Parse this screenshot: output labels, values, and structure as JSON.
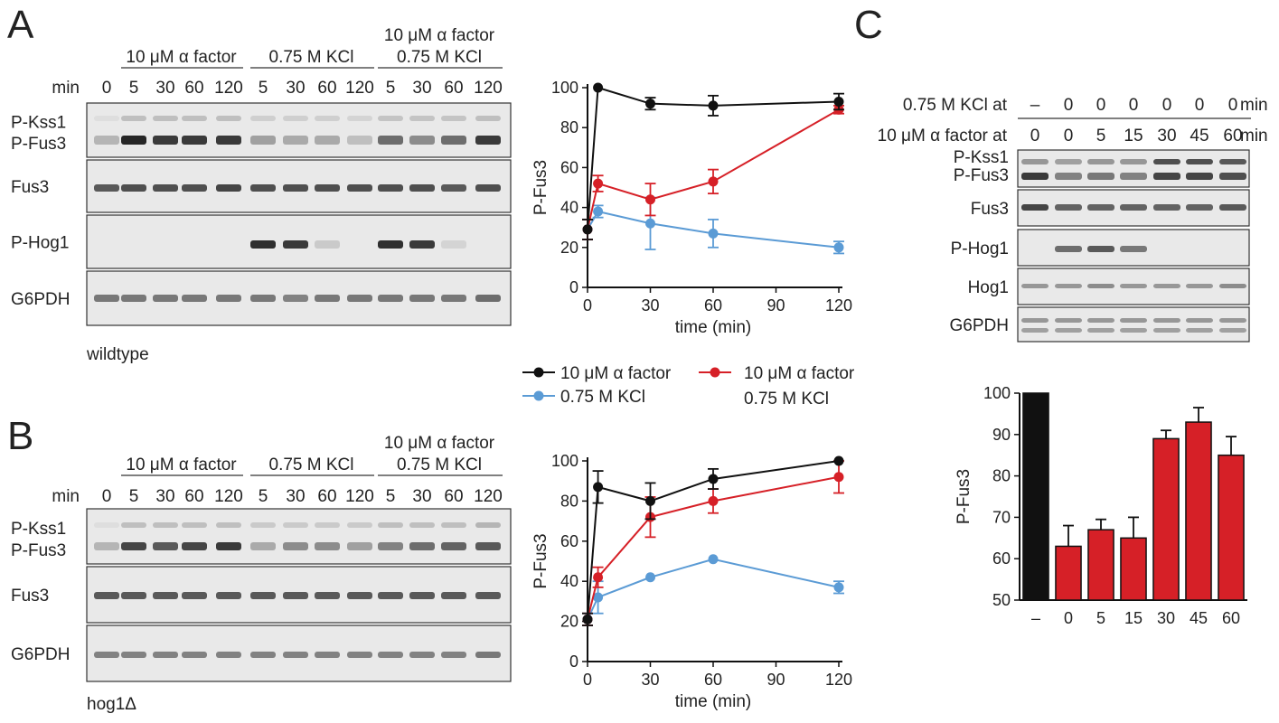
{
  "panels": {
    "A": {
      "letter": "A",
      "strain": "wildtype",
      "conditions": [
        "10 μM α factor",
        "0.75 M KCl",
        "10 μM α factor\n0.75 M KCl"
      ],
      "cond_lines": [
        [
          "10 μM α factor"
        ],
        [
          "0.75 M KCl"
        ],
        [
          "10 μM α factor",
          "0.75 M KCl"
        ]
      ],
      "time_header": "min",
      "lanes": [
        "0",
        "5",
        "30",
        "60",
        "120",
        "5",
        "30",
        "60",
        "120",
        "5",
        "30",
        "60",
        "120"
      ],
      "blots": [
        {
          "labels": [
            "P-Kss1",
            "P-Fus3"
          ]
        },
        {
          "labels": [
            "Fus3"
          ]
        },
        {
          "labels": [
            "P-Hog1"
          ]
        },
        {
          "labels": [
            "G6PDH"
          ]
        }
      ]
    },
    "B": {
      "letter": "B",
      "strain": "hog1Δ",
      "cond_lines": [
        [
          "10 μM α factor"
        ],
        [
          "0.75 M KCl"
        ],
        [
          "10 μM α factor",
          "0.75 M KCl"
        ]
      ],
      "time_header": "min",
      "lanes": [
        "0",
        "5",
        "30",
        "60",
        "120",
        "5",
        "30",
        "60",
        "120",
        "5",
        "30",
        "60",
        "120"
      ],
      "blots": [
        {
          "labels": [
            "P-Kss1",
            "P-Fus3"
          ]
        },
        {
          "labels": [
            "Fus3"
          ]
        },
        {
          "labels": [
            "G6PDH"
          ]
        }
      ]
    },
    "C": {
      "letter": "C",
      "row1_label": "0.75 M KCl at",
      "row1_values": [
        "–",
        "0",
        "0",
        "0",
        "0",
        "0",
        "0"
      ],
      "row2_label": "10 μM α factor at",
      "row2_values": [
        "0",
        "0",
        "5",
        "15",
        "30",
        "45",
        "60"
      ],
      "unit": "min",
      "blots": [
        {
          "labels": [
            "P-Kss1",
            "P-Fus3"
          ]
        },
        {
          "labels": [
            "Fus3"
          ]
        },
        {
          "labels": [
            "P-Hog1"
          ]
        },
        {
          "labels": [
            "Hog1"
          ]
        },
        {
          "labels": [
            "G6PDH"
          ]
        }
      ]
    }
  },
  "legend": [
    {
      "label": "10 μM α factor",
      "color": "#111111"
    },
    {
      "label": "0.75 M KCl",
      "color": "#5b9bd5"
    },
    {
      "label": "10 μM α factor\n0.75 M KCl",
      "label_lines": [
        "10 μM α factor",
        "0.75 M KCl"
      ],
      "color": "#d62027"
    }
  ],
  "chart_data": [
    {
      "type": "line",
      "panel": "A",
      "xlabel": "time (min)",
      "ylabel": "P-Fus3",
      "xlim": [
        0,
        120
      ],
      "ylim": [
        0,
        100
      ],
      "xticks": [
        0,
        30,
        60,
        90,
        120
      ],
      "yticks": [
        0,
        20,
        40,
        60,
        80,
        100
      ],
      "series": [
        {
          "name": "10 μM α factor",
          "color": "#111111",
          "x": [
            0,
            5,
            30,
            60,
            120
          ],
          "y": [
            29,
            100,
            92,
            91,
            93
          ],
          "err": [
            5,
            0,
            3,
            5,
            4
          ]
        },
        {
          "name": "0.75 M KCl",
          "color": "#5b9bd5",
          "x": [
            0,
            5,
            30,
            60,
            120
          ],
          "y": [
            29,
            38,
            32,
            27,
            20
          ],
          "err": [
            5,
            3,
            13,
            7,
            3
          ]
        },
        {
          "name": "10 μM α factor\n0.75 M KCl",
          "color": "#d62027",
          "x": [
            0,
            5,
            30,
            60,
            120
          ],
          "y": [
            29,
            52,
            44,
            53,
            89
          ],
          "err": [
            5,
            4,
            8,
            6,
            2
          ]
        }
      ]
    },
    {
      "type": "line",
      "panel": "B",
      "xlabel": "time (min)",
      "ylabel": "P-Fus3",
      "xlim": [
        0,
        120
      ],
      "ylim": [
        0,
        100
      ],
      "xticks": [
        0,
        30,
        60,
        90,
        120
      ],
      "yticks": [
        0,
        20,
        40,
        60,
        80,
        100
      ],
      "series": [
        {
          "name": "10 μM α factor",
          "color": "#111111",
          "x": [
            0,
            5,
            30,
            60,
            120
          ],
          "y": [
            21,
            87,
            80,
            91,
            100
          ],
          "err": [
            3,
            8,
            9,
            5,
            0
          ]
        },
        {
          "name": "0.75 M KCl",
          "color": "#5b9bd5",
          "x": [
            0,
            5,
            30,
            60,
            120
          ],
          "y": [
            21,
            32,
            42,
            51,
            37
          ],
          "err": [
            3,
            8,
            0,
            0,
            3
          ]
        },
        {
          "name": "10 μM α factor\n0.75 M KCl",
          "color": "#d62027",
          "x": [
            0,
            5,
            30,
            60,
            120
          ],
          "y": [
            21,
            42,
            72,
            80,
            92
          ],
          "err": [
            3,
            5,
            10,
            6,
            8
          ]
        }
      ]
    },
    {
      "type": "bar",
      "panel": "C",
      "ylabel": "P-Fus3",
      "ylim": [
        50,
        100
      ],
      "yticks": [
        50,
        60,
        70,
        80,
        90,
        100
      ],
      "categories": [
        "–",
        "0",
        "5",
        "15",
        "30",
        "45",
        "60"
      ],
      "values": [
        100,
        63,
        67,
        65,
        89,
        93,
        85
      ],
      "err": [
        0,
        5,
        2.5,
        5,
        2,
        3.5,
        4.5
      ],
      "colors": [
        "#111111",
        "#d62027",
        "#d62027",
        "#d62027",
        "#d62027",
        "#d62027",
        "#d62027"
      ]
    }
  ]
}
